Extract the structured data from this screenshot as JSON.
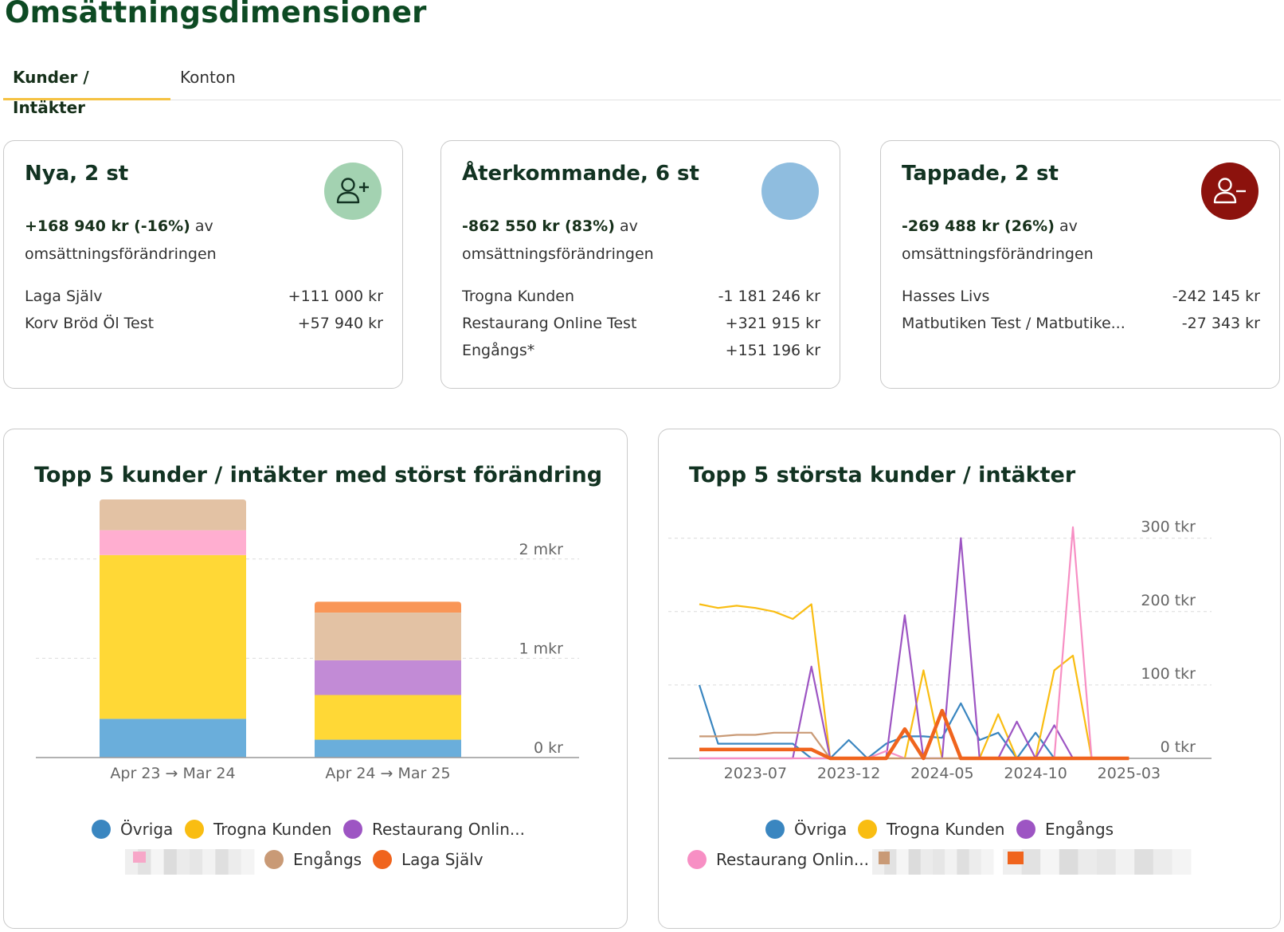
{
  "page": {
    "title": "Omsättningsdimensioner"
  },
  "tabs": [
    {
      "label": "Kunder / Intäkter",
      "active": true
    },
    {
      "label": "Konton",
      "active": false
    }
  ],
  "cards": [
    {
      "title": "Nya, 2 st",
      "icon": "user-plus-icon",
      "badge_color": "#a3d2b1",
      "amount": "+168 940 kr (-16%)",
      "suffix": " av",
      "line2": "omsättningsförändringen",
      "rows": [
        {
          "name": "Laga Själv",
          "value": "+111 000 kr"
        },
        {
          "name": "Korv Bröd Öl Test",
          "value": "+57 940 kr"
        }
      ]
    },
    {
      "title": "Återkommande, 6 st",
      "icon": "circle-icon",
      "badge_color": "#8fbddf",
      "amount": "-862 550 kr (83%)",
      "suffix": " av",
      "line2": "omsättningsförändringen",
      "rows": [
        {
          "name": "Trogna Kunden",
          "value": "-1 181 246 kr"
        },
        {
          "name": "Restaurang Online Test",
          "value": "+321 915 kr"
        },
        {
          "name": "Engångs*",
          "value": "+151 196 kr"
        }
      ]
    },
    {
      "title": "Tappade, 2 st",
      "icon": "user-minus-icon",
      "badge_color": "#8c120d",
      "amount": "-269 488 kr (26%)",
      "suffix": " av",
      "line2": "omsättningsförändringen",
      "rows": [
        {
          "name": "Hasses Livs",
          "value": "-242 145 kr"
        },
        {
          "name": "Matbutiken Test / Matbutike...",
          "value": "-27 343 kr"
        }
      ]
    }
  ],
  "chart_data": [
    {
      "type": "bar",
      "stacked": true,
      "title": "Topp 5 kunder / intäkter med störst förändring",
      "categories": [
        "Apr 23 → Mar 24",
        "Apr 24 → Mar 25"
      ],
      "ylim": [
        0,
        2600000
      ],
      "yticks": [
        {
          "value": 0,
          "label": "0 kr"
        },
        {
          "value": 1000000,
          "label": "1 mkr"
        },
        {
          "value": 2000000,
          "label": "2 mkr"
        }
      ],
      "series": [
        {
          "name": "Övriga",
          "color": "#6aaedb",
          "values": [
            390000,
            180000
          ]
        },
        {
          "name": "Trogna Kunden",
          "color": "#ffd836",
          "values": [
            1650000,
            450000
          ]
        },
        {
          "name": "Restaurang Onlin...",
          "color": "#c28bd6",
          "values": [
            0,
            350000
          ]
        },
        {
          "name": "",
          "color": "#ffaed0",
          "values": [
            250000,
            0
          ]
        },
        {
          "name": "Engångs",
          "color": "#e3c2a4",
          "values": [
            310000,
            480000
          ]
        },
        {
          "name": "Laga Själv",
          "color": "#f99657",
          "values": [
            0,
            110000
          ]
        }
      ],
      "legend": [
        {
          "label": "Övriga",
          "color": "#3a86c0"
        },
        {
          "label": "Trogna Kunden",
          "color": "#f9bd12"
        },
        {
          "label": "Restaurang Onlin...",
          "color": "#9d55c3"
        },
        {
          "label": "Engångs",
          "color": "#c99a76"
        },
        {
          "label": "Laga Själv",
          "color": "#f0641d"
        }
      ],
      "legend_placement": "bottom",
      "grid": true
    },
    {
      "type": "line",
      "title": "Topp 5 största kunder / intäkter",
      "x": [
        "2023-04",
        "2023-05",
        "2023-06",
        "2023-07",
        "2023-08",
        "2023-09",
        "2023-10",
        "2023-11",
        "2023-12",
        "2024-01",
        "2024-02",
        "2024-03",
        "2024-04",
        "2024-05",
        "2024-06",
        "2024-07",
        "2024-08",
        "2024-09",
        "2024-10",
        "2024-11",
        "2024-12",
        "2025-01",
        "2025-02",
        "2025-03"
      ],
      "xticks": [
        "2023-07",
        "2023-12",
        "2024-05",
        "2024-10",
        "2025-03"
      ],
      "ylim": [
        0,
        330000
      ],
      "yticks": [
        {
          "value": 0,
          "label": "0 tkr"
        },
        {
          "value": 100000,
          "label": "100 tkr"
        },
        {
          "value": 200000,
          "label": "200 tkr"
        },
        {
          "value": 300000,
          "label": "300 tkr"
        }
      ],
      "series": [
        {
          "name": "Övriga",
          "color": "#3a86c0",
          "values": [
            100000,
            20000,
            20000,
            20000,
            20000,
            20000,
            0,
            0,
            25000,
            0,
            20000,
            30000,
            30000,
            28000,
            75000,
            25000,
            35000,
            0,
            35000,
            0,
            0,
            0,
            0,
            0
          ]
        },
        {
          "name": "Trogna Kunden",
          "color": "#f9bd12",
          "values": [
            210000,
            205000,
            208000,
            205000,
            200000,
            190000,
            210000,
            0,
            0,
            0,
            0,
            0,
            120000,
            0,
            0,
            0,
            60000,
            0,
            0,
            120000,
            140000,
            0,
            0,
            0
          ]
        },
        {
          "name": "Engångs",
          "color": "#9d55c3",
          "values": [
            0,
            0,
            0,
            0,
            0,
            0,
            125000,
            0,
            0,
            0,
            0,
            195000,
            0,
            0,
            300000,
            0,
            0,
            50000,
            0,
            45000,
            0,
            0,
            0,
            0
          ]
        },
        {
          "name": "Restaurang Onlin...",
          "color": "#f78fc4",
          "values": [
            0,
            0,
            0,
            0,
            0,
            0,
            0,
            0,
            0,
            0,
            10000,
            0,
            0,
            0,
            0,
            0,
            0,
            0,
            0,
            0,
            315000,
            0,
            0,
            0
          ]
        },
        {
          "name": "",
          "color": "#c99a76",
          "values": [
            30000,
            30000,
            32000,
            32000,
            35000,
            35000,
            35000,
            0,
            0,
            0,
            0,
            0,
            0,
            0,
            0,
            0,
            0,
            0,
            0,
            0,
            0,
            0,
            0,
            0
          ]
        },
        {
          "name": "",
          "color": "#f0641d",
          "values": [
            12000,
            12000,
            12000,
            12000,
            12000,
            12000,
            12000,
            0,
            0,
            0,
            0,
            40000,
            0,
            65000,
            0,
            0,
            0,
            0,
            0,
            0,
            0,
            0,
            0,
            0
          ]
        }
      ],
      "legend": [
        {
          "label": "Övriga",
          "color": "#3a86c0"
        },
        {
          "label": "Trogna Kunden",
          "color": "#f9bd12"
        },
        {
          "label": "Engångs",
          "color": "#9d55c3"
        },
        {
          "label": "Restaurang Onlin...",
          "color": "#f78fc4"
        }
      ],
      "legend_placement": "bottom",
      "grid": true
    }
  ]
}
